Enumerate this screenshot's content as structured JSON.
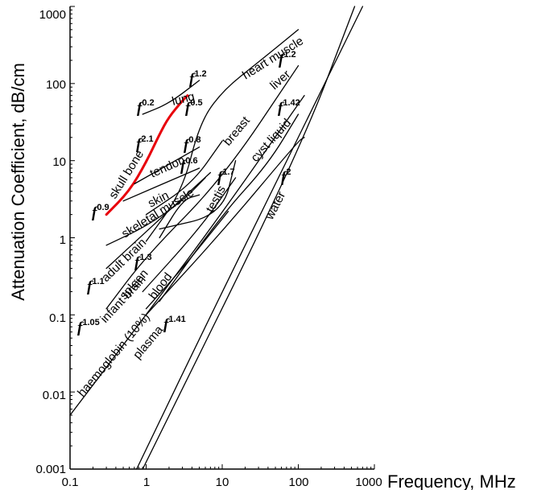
{
  "chart_data": {
    "type": "line",
    "title": "",
    "xlabel": "Frequency, MHz",
    "ylabel": "Attenuation Coefficient, dB/cm",
    "x_scale": "log",
    "y_scale": "log",
    "xlim": [
      0.1,
      1000
    ],
    "ylim": [
      0.001,
      1000
    ],
    "x_ticks": [
      "0.1",
      "1",
      "10",
      "100",
      "1000"
    ],
    "y_ticks": [
      "0.001",
      "0.01",
      "0.1",
      "1",
      "10",
      "100",
      "1000"
    ],
    "highlight_color": "#e8000b",
    "series": [
      {
        "name": "lung",
        "exponent": "0.2, 0.5, 1.2",
        "points": [
          [
            0.9,
            40
          ],
          [
            2,
            55
          ],
          [
            5,
            110
          ]
        ]
      },
      {
        "name": "skull bone",
        "exponent": "0.9, 2.1",
        "highlight": true,
        "points": [
          [
            0.3,
            2.0
          ],
          [
            0.6,
            4.0
          ],
          [
            1,
            9.5
          ],
          [
            1.5,
            22
          ],
          [
            2,
            37
          ],
          [
            3,
            60
          ],
          [
            3.5,
            70
          ]
        ]
      },
      {
        "name": "tendon",
        "exponent": "0.8",
        "points": [
          [
            0.7,
            5
          ],
          [
            5,
            15
          ]
        ]
      },
      {
        "name": "skin",
        "exponent": "0.6",
        "points": [
          [
            0.5,
            3
          ],
          [
            5,
            8
          ]
        ]
      },
      {
        "name": "heart muscle",
        "exponent": "",
        "points": [
          [
            1,
            0.9
          ],
          [
            3,
            4.0
          ],
          [
            5,
            30
          ],
          [
            10,
            80
          ],
          [
            30,
            190
          ],
          [
            100,
            500
          ]
        ]
      },
      {
        "name": "breast",
        "exponent": "",
        "points": [
          [
            1,
            2
          ],
          [
            4,
            5
          ],
          [
            10,
            18
          ]
        ]
      },
      {
        "name": "skeletal muscle",
        "exponent": "",
        "points": [
          [
            0.3,
            0.8
          ],
          [
            1,
            1.4
          ],
          [
            3,
            3
          ],
          [
            6,
            6
          ]
        ]
      },
      {
        "name": "liver",
        "exponent": "1.2",
        "points": [
          [
            0.3,
            0.12
          ],
          [
            1,
            0.58
          ],
          [
            10,
            5.8
          ],
          [
            100,
            170
          ]
        ]
      },
      {
        "name": "adult brain",
        "exponent": "1.1",
        "points": [
          [
            0.3,
            0.4
          ],
          [
            1,
            1.2
          ],
          [
            7,
            7
          ]
        ]
      },
      {
        "name": "spleen",
        "exponent": "1.3",
        "points": [
          [
            1.5,
            1
          ],
          [
            3,
            3.1
          ],
          [
            5,
            3.6
          ]
        ]
      },
      {
        "name": "testis",
        "exponent": "1.7",
        "points": [
          [
            1.5,
            1.3
          ],
          [
            10,
            2
          ],
          [
            15,
            10
          ]
        ]
      },
      {
        "name": "infant brain",
        "exponent": "1.05",
        "points": [
          [
            0.9,
            0.2
          ],
          [
            5,
            1.3
          ],
          [
            15,
            6
          ]
        ]
      },
      {
        "name": "cyst liquid",
        "exponent": "1.42",
        "points": [
          [
            1.5,
            0.15
          ],
          [
            10,
            2
          ],
          [
            40,
            9
          ],
          [
            100,
            40
          ]
        ]
      },
      {
        "name": "blood",
        "exponent": "",
        "points": [
          [
            1,
            0.12
          ],
          [
            3,
            0.4
          ],
          [
            12,
            2.2
          ]
        ]
      },
      {
        "name": "haemoglobin (10%)",
        "exponent": "",
        "points": [
          [
            0.1,
            0.005
          ],
          [
            1,
            0.1
          ],
          [
            10,
            2.1
          ],
          [
            120,
            70
          ]
        ]
      },
      {
        "name": "plasma",
        "exponent": "1.41",
        "points": [
          [
            1,
            0.1
          ],
          [
            10,
            1.2
          ],
          [
            100,
            18
          ],
          [
            120,
            20
          ]
        ]
      },
      {
        "name": "water",
        "exponent": "2",
        "points": [
          [
            0.75,
            0.001
          ],
          [
            10,
            0.2
          ],
          [
            100,
            20
          ],
          [
            700,
            1000
          ]
        ]
      },
      {
        "name": "",
        "exponent": "",
        "points": [
          [
            0.9,
            0.001
          ],
          [
            100,
            12
          ],
          [
            550,
            1000
          ]
        ]
      }
    ]
  }
}
